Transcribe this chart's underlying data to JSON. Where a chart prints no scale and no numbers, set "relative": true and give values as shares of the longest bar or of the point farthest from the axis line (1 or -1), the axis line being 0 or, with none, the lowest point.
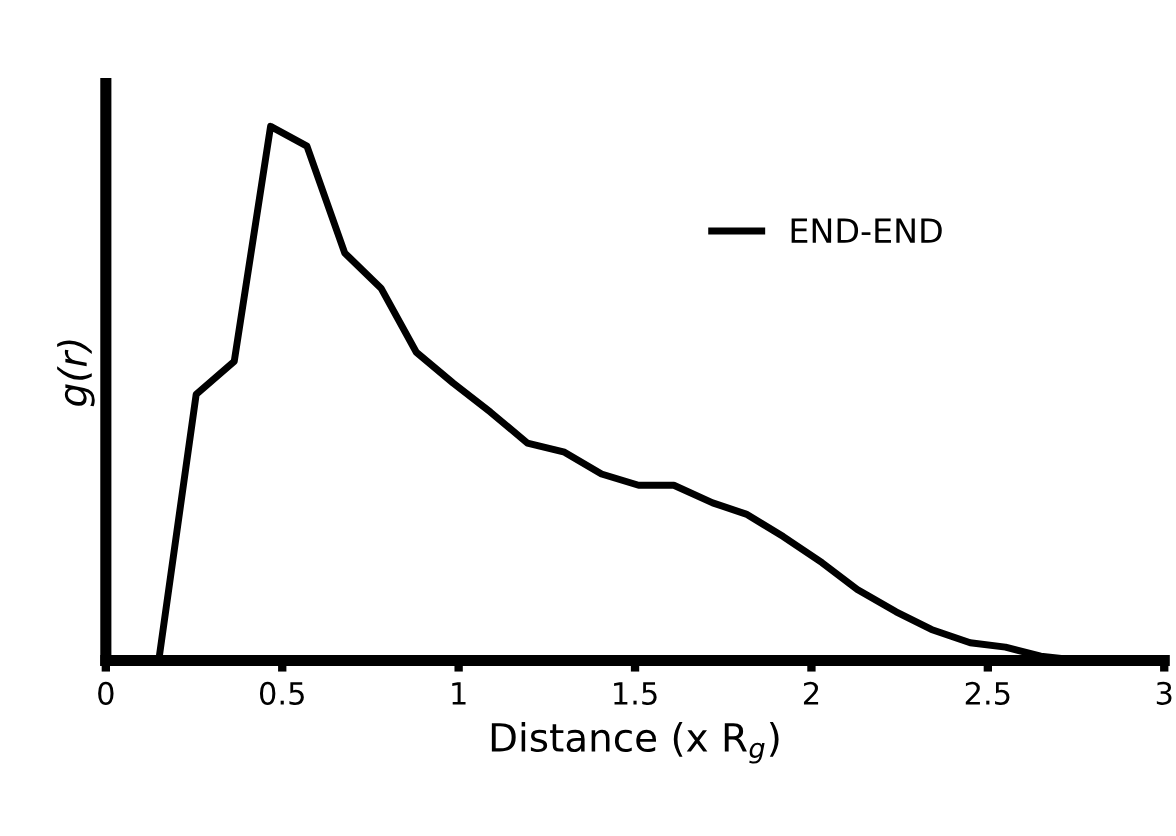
{
  "chart_data": {
    "type": "line",
    "relative": true,
    "xlabel": "Distance (x R$_{g}$)",
    "ylabel": "g(r)",
    "xlim": [
      0,
      3
    ],
    "xticks": [
      0,
      0.5,
      1,
      1.5,
      2,
      2.5,
      3
    ],
    "legend": "top right",
    "grid": false,
    "series": [
      {
        "name": "END-END",
        "color": "#000000",
        "x": [
          0.15,
          0.256,
          0.364,
          0.467,
          0.57,
          0.677,
          0.78,
          0.88,
          0.985,
          1.09,
          1.195,
          1.3,
          1.405,
          1.51,
          1.61,
          1.72,
          1.815,
          1.92,
          2.03,
          2.13,
          2.24,
          2.34,
          2.45,
          2.55,
          2.65,
          2.76,
          2.88,
          3.0
        ],
        "values": [
          0,
          0.498,
          0.56,
          1,
          0.963,
          0.763,
          0.697,
          0.577,
          0.519,
          0.465,
          0.407,
          0.39,
          0.349,
          0.328,
          0.328,
          0.295,
          0.274,
          0.232,
          0.183,
          0.133,
          0.091,
          0.058,
          0.033,
          0.025,
          0.008,
          0,
          0,
          0
        ]
      }
    ]
  }
}
